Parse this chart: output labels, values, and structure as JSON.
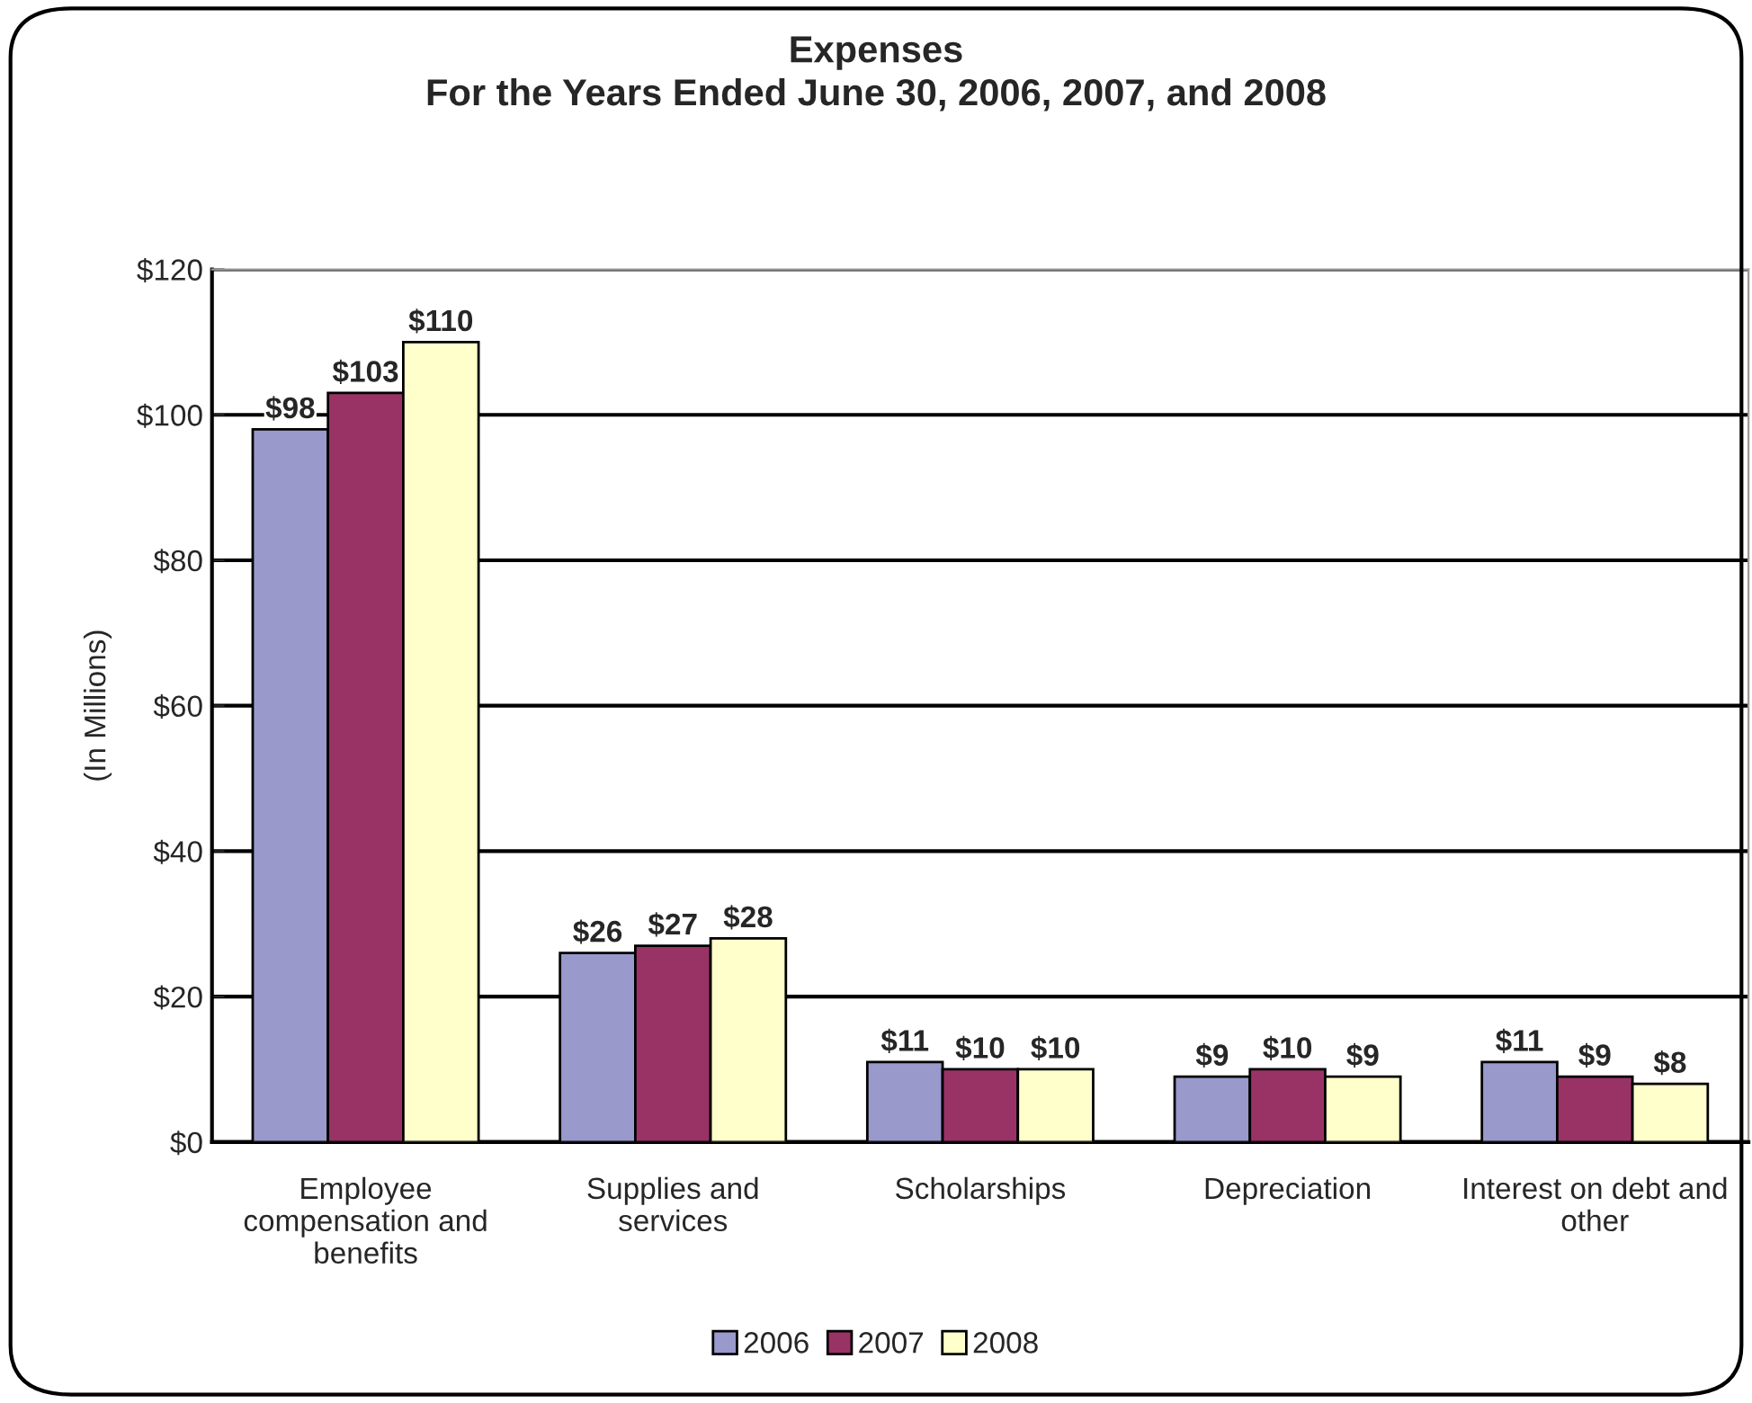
{
  "chart_data": {
    "type": "bar",
    "title": "Expenses\nFor the Years Ended June 30, 2006, 2007, and 2008",
    "ylabel": "(In Millions)",
    "categories": [
      "Employee\ncompensation and\nbenefits",
      "Supplies and\nservices",
      "Scholarships",
      "Depreciation",
      "Interest on debt and\nother"
    ],
    "series": [
      {
        "name": "2006",
        "color": "#9999cc",
        "values": [
          98,
          26,
          11,
          9,
          11
        ],
        "value_labels": [
          "$98",
          "$26",
          "$11",
          "$9",
          "$11"
        ]
      },
      {
        "name": "2007",
        "color": "#993366",
        "values": [
          103,
          27,
          10,
          10,
          9
        ],
        "value_labels": [
          "$103",
          "$27",
          "$10",
          "$10",
          "$9"
        ]
      },
      {
        "name": "2008",
        "color": "#ffffcc",
        "values": [
          110,
          28,
          10,
          9,
          8
        ],
        "value_labels": [
          "$110",
          "$28",
          "$10",
          "$9",
          "$8"
        ]
      }
    ],
    "ylim": [
      0,
      120
    ],
    "yticks": [
      {
        "value": 0,
        "label": "$0"
      },
      {
        "value": 20,
        "label": "$20"
      },
      {
        "value": 40,
        "label": "$40"
      },
      {
        "value": 60,
        "label": "$60"
      },
      {
        "value": 80,
        "label": "$80"
      },
      {
        "value": 100,
        "label": "$100"
      },
      {
        "value": 120,
        "label": "$120"
      }
    ],
    "grid": "y",
    "legend": "bottom"
  }
}
